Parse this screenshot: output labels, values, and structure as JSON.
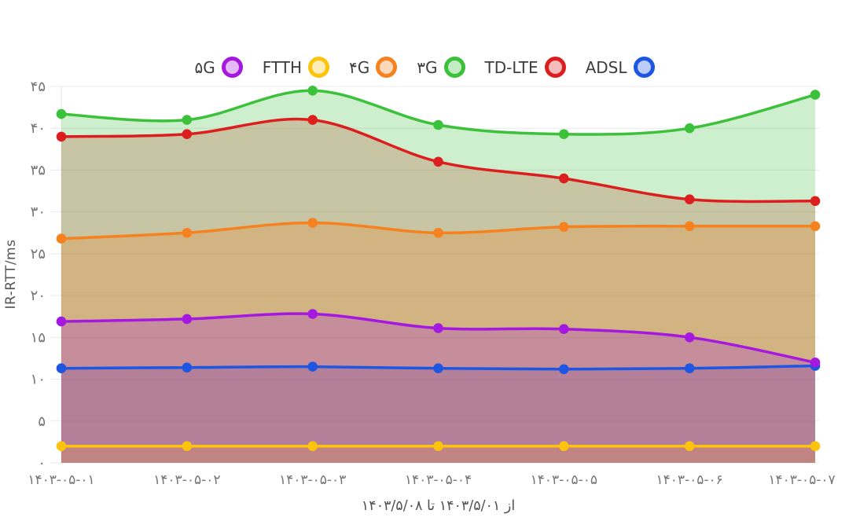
{
  "legend": {
    "items": [
      {
        "label": "۵G",
        "slug": "5g",
        "color": "#a518e0"
      },
      {
        "label": "FTTH",
        "slug": "ftth",
        "color": "#fdc30d"
      },
      {
        "label": "۴G",
        "slug": "4g",
        "color": "#f5821e"
      },
      {
        "label": "۳G",
        "slug": "3g",
        "color": "#3cc13a"
      },
      {
        "label": "TD-LTE",
        "slug": "td-lte",
        "color": "#dc1e1e"
      },
      {
        "label": "ADSL",
        "slug": "adsl",
        "color": "#1d56e3"
      }
    ]
  },
  "y_axis": {
    "title": "IR-RTT/ms",
    "tick_values": [
      0,
      5,
      10,
      15,
      20,
      25,
      30,
      35,
      40,
      45
    ],
    "tick_labels": [
      "۰",
      "۵",
      "۱۰",
      "۱۵",
      "۲۰",
      "۲۵",
      "۳۰",
      "۳۵",
      "۴۰",
      "۴۵"
    ]
  },
  "x_axis": {
    "caption": "از ۱۴۰۳/۵/۰۱ تا ۱۴۰۳/۵/۰۸"
  },
  "chart_data": {
    "type": "area",
    "title": "",
    "xlabel": "از ۱۴۰۳/۵/۰۱ تا ۱۴۰۳/۵/۰۸",
    "ylabel": "IR-RTT/ms",
    "ylim": [
      0,
      45
    ],
    "grid": true,
    "legend_position": "top",
    "fill_opacity": 0.25,
    "categories": [
      "۱۴۰۳-۰۵-۰۱",
      "۱۴۰۳-۰۵-۰۲",
      "۱۴۰۳-۰۵-۰۳",
      "۱۴۰۳-۰۵-۰۴",
      "۱۴۰۳-۰۵-۰۵",
      "۱۴۰۳-۰۵-۰۶",
      "۱۴۰۳-۰۵-۰۷"
    ],
    "series": [
      {
        "name": "۵G",
        "slug": "5g",
        "color": "#a518e0",
        "values": [
          16.9,
          17.2,
          17.8,
          16.1,
          16.0,
          15.0,
          12.0
        ]
      },
      {
        "name": "FTTH",
        "slug": "ftth",
        "color": "#fdc30d",
        "values": [
          2.0,
          2.0,
          2.0,
          2.0,
          2.0,
          2.0,
          2.0
        ]
      },
      {
        "name": "۴G",
        "slug": "4g",
        "color": "#f5821e",
        "values": [
          26.8,
          27.5,
          28.7,
          27.5,
          28.2,
          28.3,
          28.3
        ]
      },
      {
        "name": "۳G",
        "slug": "3g",
        "color": "#3cc13a",
        "values": [
          41.7,
          41.0,
          44.5,
          40.4,
          39.3,
          40.0,
          44.0
        ]
      },
      {
        "name": "TD-LTE",
        "slug": "td-lte",
        "color": "#dc1e1e",
        "values": [
          39.0,
          39.3,
          41.0,
          36.0,
          34.0,
          31.5,
          31.3
        ]
      },
      {
        "name": "ADSL",
        "slug": "adsl",
        "color": "#1d56e3",
        "values": [
          11.3,
          11.4,
          11.5,
          11.3,
          11.2,
          11.3,
          11.6
        ]
      }
    ]
  }
}
